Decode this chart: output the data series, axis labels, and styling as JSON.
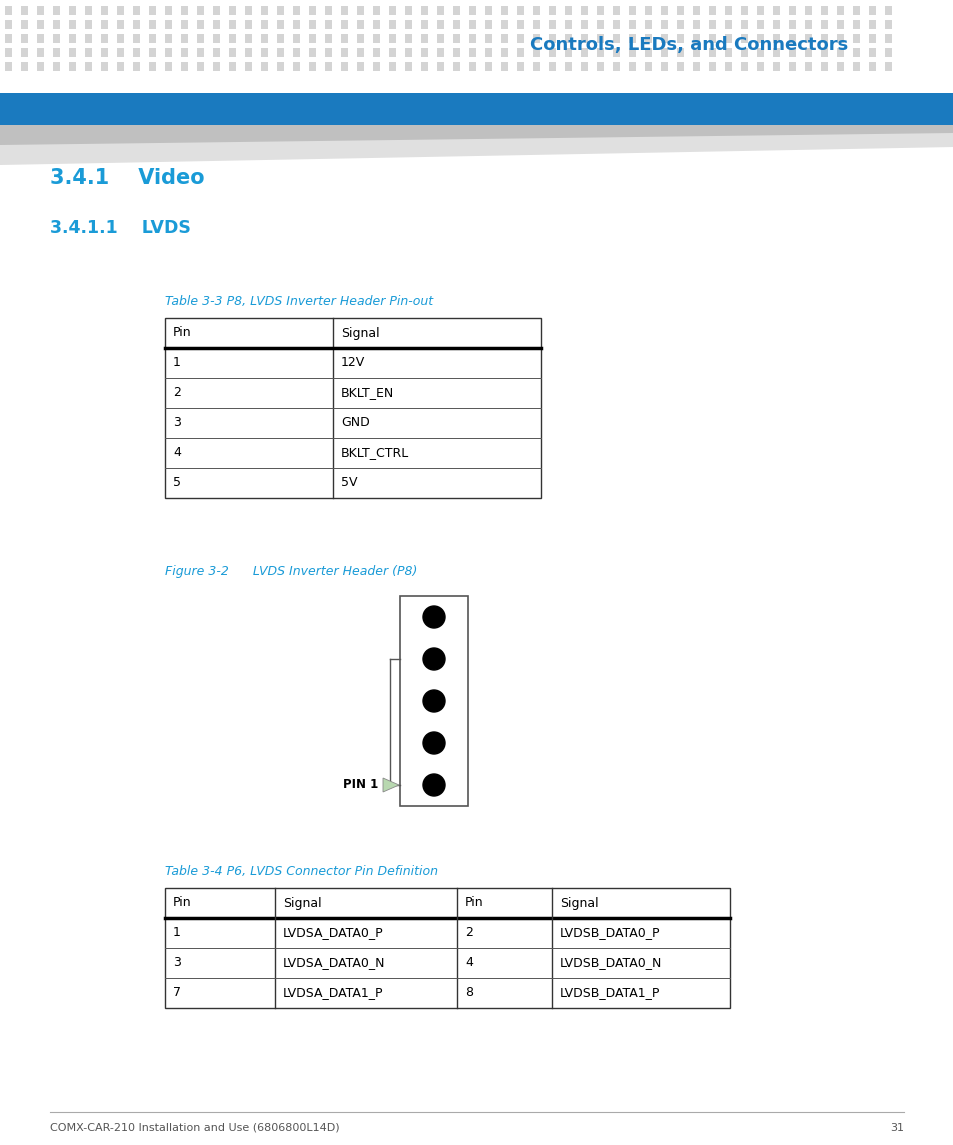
{
  "bg_color": "#ffffff",
  "header_dot_color": "#d4d4d4",
  "header_bar_color": "#1a7abf",
  "header_text": "Controls, LEDs, and Connectors",
  "header_text_color": "#1a7abf",
  "section_title1": "3.4.1    Video",
  "section_title2": "3.4.1.1    LVDS",
  "section_title_color": "#1a9bd7",
  "table1_caption": "Table 3-3 P8, LVDS Inverter Header Pin-out",
  "table1_caption_color": "#1a9bd7",
  "table1_headers": [
    "Pin",
    "Signal"
  ],
  "table1_rows": [
    [
      "1",
      "12V"
    ],
    [
      "2",
      "BKLT_EN"
    ],
    [
      "3",
      "GND"
    ],
    [
      "4",
      "BKLT_CTRL"
    ],
    [
      "5",
      "5V"
    ]
  ],
  "figure_caption": "Figure 3-2      LVDS Inverter Header (P8)",
  "figure_caption_color": "#1a9bd7",
  "table2_caption": "Table 3-4 P6, LVDS Connector Pin Definition",
  "table2_caption_color": "#1a9bd7",
  "table2_headers": [
    "Pin",
    "Signal",
    "Pin",
    "Signal"
  ],
  "table2_rows": [
    [
      "1",
      "LVDSA_DATA0_P",
      "2",
      "LVDSB_DATA0_P"
    ],
    [
      "3",
      "LVDSA_DATA0_N",
      "4",
      "LVDSB_DATA0_N"
    ],
    [
      "7",
      "LVDSA_DATA1_P",
      "8",
      "LVDSB_DATA1_P"
    ]
  ],
  "footer_text": "COMX-CAR-210 Installation and Use (6806800L14D)",
  "footer_page": "31",
  "footer_color": "#555555",
  "pin1_label": "PIN 1",
  "pin1_arrow_color": "#b8d8b0"
}
